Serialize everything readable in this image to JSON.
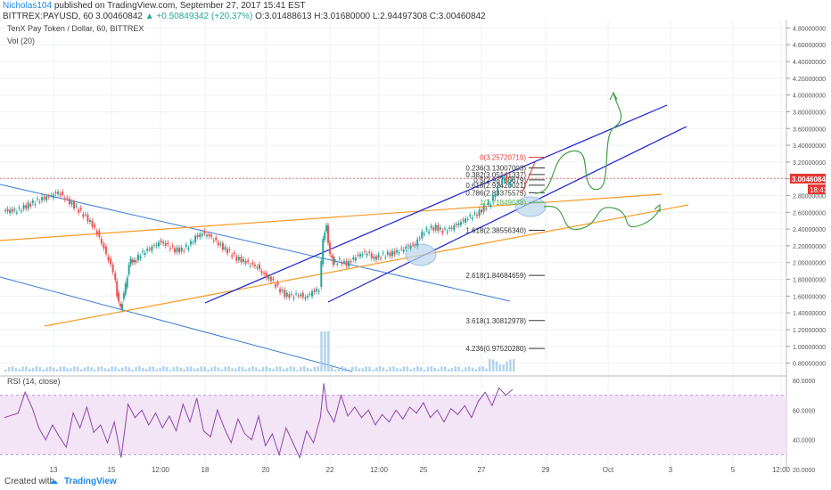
{
  "header": {
    "author": "Nicholas104",
    "published_text": "published on TradingView.com, September 27, 2017 15:41 EST",
    "symbol": "BITTREX:PAYUSD, 60",
    "price": "3.00460842",
    "change": "▲ +0.50849342 (+20.37%)",
    "ohlc": "O:3.01488613 H:3.01680000 L:2.94497308 C:3.00460842"
  },
  "chart_data": {
    "type": "candlestick",
    "title": "TenX Pay Token / Dollar, 60, BITTREX",
    "volume_label": "Vol (20)",
    "rsi_label": "RSI (14, close)",
    "x_ticks": [
      "13",
      "15",
      "12:00",
      "18",
      "20",
      "22",
      "12:00",
      "25",
      "27",
      "29",
      "Oct",
      "3",
      "5",
      "12:00"
    ],
    "y_ticks": [
      "4.80000000",
      "4.60000000",
      "4.40000000",
      "4.20000000",
      "4.00000000",
      "3.80000000",
      "3.60000000",
      "3.40000000",
      "3.20000000",
      "3.00000000",
      "2.80000000",
      "2.60000000",
      "2.40000000",
      "2.20000000",
      "2.00000000",
      "1.80000000",
      "1.60000000",
      "1.40000000",
      "1.20000000",
      "1.00000000",
      "0.80000000"
    ],
    "y_range": [
      0.7,
      4.9
    ],
    "rsi_ticks": [
      "80.0000",
      "60.0000",
      "40.0000",
      "20.0000"
    ],
    "rsi_range": [
      20,
      80
    ],
    "rsi_band": [
      30,
      70
    ],
    "last_price": "3.00460842",
    "countdown": "18:41",
    "price_path": [
      [
        0,
        2.62
      ],
      [
        2,
        2.62
      ],
      [
        5,
        2.74
      ],
      [
        7,
        2.8
      ],
      [
        8,
        2.84
      ],
      [
        10,
        2.7
      ],
      [
        12,
        2.55
      ],
      [
        13,
        2.45
      ],
      [
        14,
        2.3
      ],
      [
        15,
        2.1
      ],
      [
        16,
        1.9
      ],
      [
        16.5,
        1.62
      ],
      [
        17,
        1.45
      ],
      [
        17.5,
        1.62
      ],
      [
        18,
        1.85
      ],
      [
        18.5,
        2.05
      ],
      [
        19,
        2.0
      ],
      [
        20,
        2.1
      ],
      [
        21,
        2.15
      ],
      [
        22,
        2.2
      ],
      [
        23,
        2.25
      ],
      [
        24,
        2.2
      ],
      [
        25,
        2.15
      ],
      [
        26,
        2.15
      ],
      [
        27,
        2.2
      ],
      [
        28,
        2.3
      ],
      [
        29,
        2.35
      ],
      [
        30,
        2.32
      ],
      [
        31,
        2.25
      ],
      [
        32,
        2.18
      ],
      [
        33,
        2.12
      ],
      [
        34,
        2.05
      ],
      [
        35,
        2.02
      ],
      [
        36,
        1.98
      ],
      [
        37,
        1.95
      ],
      [
        38,
        1.85
      ],
      [
        39,
        1.8
      ],
      [
        40,
        1.7
      ],
      [
        41,
        1.62
      ],
      [
        42,
        1.6
      ],
      [
        43,
        1.62
      ],
      [
        44,
        1.58
      ],
      [
        45,
        1.65
      ],
      [
        46,
        1.68
      ],
      [
        46.5,
        2.3
      ],
      [
        47,
        2.42
      ],
      [
        47.5,
        2.1
      ],
      [
        48,
        2.0
      ],
      [
        49,
        2.02
      ],
      [
        50,
        1.98
      ],
      [
        51,
        2.05
      ],
      [
        52,
        2.1
      ],
      [
        53,
        2.12
      ],
      [
        54,
        2.05
      ],
      [
        55,
        2.08
      ],
      [
        56,
        2.1
      ],
      [
        57,
        2.12
      ],
      [
        58,
        2.15
      ],
      [
        59,
        2.2
      ],
      [
        60,
        2.22
      ],
      [
        61,
        2.35
      ],
      [
        62,
        2.4
      ],
      [
        63,
        2.42
      ],
      [
        64,
        2.38
      ],
      [
        65,
        2.4
      ],
      [
        66,
        2.45
      ],
      [
        67,
        2.5
      ],
      [
        68,
        2.55
      ],
      [
        69,
        2.58
      ],
      [
        70,
        2.65
      ],
      [
        71,
        2.72
      ],
      [
        72,
        2.9
      ],
      [
        73,
        3.02
      ],
      [
        73.5,
        2.94
      ],
      [
        74,
        3.0
      ]
    ],
    "rsi_path": [
      [
        0,
        55
      ],
      [
        2,
        58
      ],
      [
        3,
        72
      ],
      [
        4,
        62
      ],
      [
        5,
        48
      ],
      [
        6,
        40
      ],
      [
        7,
        50
      ],
      [
        8,
        42
      ],
      [
        9,
        35
      ],
      [
        10,
        58
      ],
      [
        11,
        48
      ],
      [
        12,
        62
      ],
      [
        13,
        45
      ],
      [
        14,
        50
      ],
      [
        15,
        38
      ],
      [
        16,
        52
      ],
      [
        17,
        28
      ],
      [
        18,
        64
      ],
      [
        19,
        55
      ],
      [
        20,
        60
      ],
      [
        21,
        50
      ],
      [
        22,
        58
      ],
      [
        23,
        48
      ],
      [
        24,
        56
      ],
      [
        25,
        46
      ],
      [
        26,
        64
      ],
      [
        27,
        52
      ],
      [
        28,
        68
      ],
      [
        29,
        46
      ],
      [
        30,
        42
      ],
      [
        31,
        60
      ],
      [
        32,
        48
      ],
      [
        33,
        38
      ],
      [
        34,
        54
      ],
      [
        35,
        44
      ],
      [
        36,
        40
      ],
      [
        37,
        56
      ],
      [
        38,
        36
      ],
      [
        39,
        44
      ],
      [
        40,
        30
      ],
      [
        41,
        48
      ],
      [
        42,
        38
      ],
      [
        43,
        28
      ],
      [
        44,
        46
      ],
      [
        45,
        38
      ],
      [
        46,
        55
      ],
      [
        46.5,
        78
      ],
      [
        47,
        60
      ],
      [
        48,
        52
      ],
      [
        49,
        70
      ],
      [
        50,
        56
      ],
      [
        51,
        62
      ],
      [
        52,
        55
      ],
      [
        53,
        60
      ],
      [
        54,
        50
      ],
      [
        55,
        57
      ],
      [
        56,
        52
      ],
      [
        57,
        60
      ],
      [
        58,
        54
      ],
      [
        59,
        62
      ],
      [
        60,
        58
      ],
      [
        61,
        65
      ],
      [
        62,
        55
      ],
      [
        63,
        60
      ],
      [
        64,
        52
      ],
      [
        65,
        61
      ],
      [
        66,
        57
      ],
      [
        67,
        63
      ],
      [
        68,
        55
      ],
      [
        69,
        66
      ],
      [
        70,
        72
      ],
      [
        71,
        63
      ],
      [
        72,
        75
      ],
      [
        73,
        70
      ],
      [
        74,
        74
      ]
    ],
    "fib_levels": [
      {
        "label": "0(3.25720719)",
        "price": 3.2572,
        "color": "#e53935"
      },
      {
        "label": "0.236(3.13007003)",
        "price": 3.13,
        "color": "#333333"
      },
      {
        "label": "0.382(3.05141337)",
        "price": 3.0514,
        "color": "#333333"
      },
      {
        "label": "0.5(2.98785679)",
        "price": 2.9879,
        "color": "#333333"
      },
      {
        "label": "0.618(2.92420021)",
        "price": 2.9242,
        "color": "#333333"
      },
      {
        "label": "0.786(2.83375575)",
        "price": 2.8338,
        "color": "#333333"
      },
      {
        "label": "1(2.71849038)",
        "price": 2.7185,
        "color": "#4caf50"
      },
      {
        "label": "1.618(2.38556340)",
        "price": 2.3856,
        "color": "#333333"
      },
      {
        "label": "2.618(1.84684659)",
        "price": 1.8468,
        "color": "#333333"
      },
      {
        "label": "3.618(1.30812978)",
        "price": 1.3081,
        "color": "#333333"
      },
      {
        "label": "4.236(0.97520280)",
        "price": 0.9752,
        "color": "#333333"
      }
    ],
    "colors": {
      "up": "#26a69a",
      "down": "#ef5350",
      "channel": "#1a1fd6",
      "trendline": "#f59a23",
      "falling_channel": "#3b7bd4",
      "projection": "#43a047",
      "rsi": "#8e44ad",
      "rsi_band": "#f3e5f5"
    }
  },
  "footer": {
    "created_with": "Created with",
    "brand": "TradingView"
  }
}
